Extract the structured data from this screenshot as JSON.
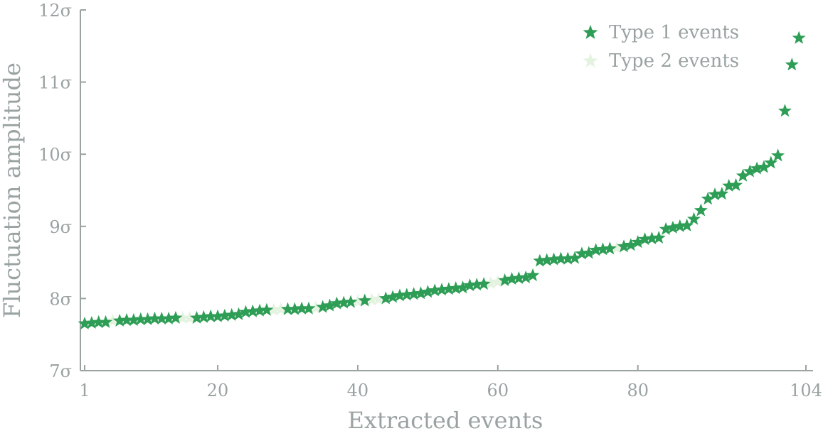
{
  "chart_data": {
    "type": "scatter",
    "xlabel": "Extracted events",
    "ylabel": "Fluctuation amplitude",
    "xlim": [
      0.5,
      105
    ],
    "ylim": [
      7,
      12
    ],
    "x_ticks": [
      1,
      20,
      40,
      60,
      80,
      104
    ],
    "x_tick_labels": [
      "1",
      "20",
      "40",
      "60",
      "80",
      "104"
    ],
    "y_ticks": [
      7,
      8,
      9,
      10,
      11,
      12
    ],
    "y_tick_labels": [
      "7σ",
      "8σ",
      "9σ",
      "10σ",
      "11σ",
      "12σ"
    ],
    "grid": false,
    "legend_position": "top-right",
    "colors": {
      "axis": "#9aa2a2",
      "type1": "#2e9d55",
      "type2": "#e3f3df"
    },
    "series": [
      {
        "name": "Type 1 events",
        "marker": "star",
        "color": "#2e9d55",
        "points": [
          [
            1,
            7.65
          ],
          [
            2,
            7.66
          ],
          [
            3,
            7.67
          ],
          [
            4,
            7.67
          ],
          [
            6,
            7.69
          ],
          [
            7,
            7.7
          ],
          [
            8,
            7.7
          ],
          [
            9,
            7.71
          ],
          [
            10,
            7.71
          ],
          [
            11,
            7.72
          ],
          [
            12,
            7.72
          ],
          [
            13,
            7.72
          ],
          [
            14,
            7.73
          ],
          [
            17,
            7.73
          ],
          [
            18,
            7.74
          ],
          [
            19,
            7.75
          ],
          [
            20,
            7.75
          ],
          [
            21,
            7.76
          ],
          [
            22,
            7.77
          ],
          [
            23,
            7.78
          ],
          [
            24,
            7.81
          ],
          [
            25,
            7.82
          ],
          [
            26,
            7.83
          ],
          [
            27,
            7.84
          ],
          [
            30,
            7.85
          ],
          [
            31,
            7.85
          ],
          [
            32,
            7.86
          ],
          [
            33,
            7.86
          ],
          [
            35,
            7.88
          ],
          [
            36,
            7.9
          ],
          [
            37,
            7.93
          ],
          [
            38,
            7.94
          ],
          [
            39,
            7.95
          ],
          [
            41,
            7.97
          ],
          [
            44,
            8.0
          ],
          [
            45,
            8.02
          ],
          [
            46,
            8.04
          ],
          [
            47,
            8.05
          ],
          [
            48,
            8.06
          ],
          [
            49,
            8.07
          ],
          [
            50,
            8.09
          ],
          [
            51,
            8.11
          ],
          [
            52,
            8.12
          ],
          [
            53,
            8.13
          ],
          [
            54,
            8.14
          ],
          [
            55,
            8.15
          ],
          [
            56,
            8.18
          ],
          [
            57,
            8.19
          ],
          [
            58,
            8.2
          ],
          [
            61,
            8.25
          ],
          [
            62,
            8.27
          ],
          [
            63,
            8.28
          ],
          [
            64,
            8.29
          ],
          [
            65,
            8.32
          ],
          [
            66,
            8.52
          ],
          [
            67,
            8.53
          ],
          [
            68,
            8.54
          ],
          [
            69,
            8.55
          ],
          [
            70,
            8.55
          ],
          [
            71,
            8.56
          ],
          [
            72,
            8.62
          ],
          [
            73,
            8.63
          ],
          [
            74,
            8.67
          ],
          [
            75,
            8.68
          ],
          [
            76,
            8.69
          ],
          [
            78,
            8.72
          ],
          [
            79,
            8.74
          ],
          [
            80,
            8.78
          ],
          [
            81,
            8.82
          ],
          [
            82,
            8.83
          ],
          [
            83,
            8.84
          ],
          [
            84,
            8.96
          ],
          [
            85,
            8.98
          ],
          [
            86,
            9.0
          ],
          [
            87,
            9.01
          ],
          [
            88,
            9.1
          ],
          [
            89,
            9.22
          ],
          [
            90,
            9.38
          ],
          [
            91,
            9.44
          ],
          [
            92,
            9.45
          ],
          [
            93,
            9.56
          ],
          [
            94,
            9.57
          ],
          [
            95,
            9.7
          ],
          [
            96,
            9.76
          ],
          [
            97,
            9.8
          ],
          [
            98,
            9.82
          ],
          [
            99,
            9.88
          ],
          [
            100,
            9.98
          ],
          [
            101,
            10.6
          ],
          [
            102,
            11.24
          ],
          [
            103,
            11.61
          ]
        ]
      },
      {
        "name": "Type 2 events",
        "marker": "star",
        "color": "#e3f3df",
        "points": [
          [
            5,
            7.69
          ],
          [
            15,
            7.73
          ],
          [
            16,
            7.73
          ],
          [
            28,
            7.84
          ],
          [
            29,
            7.85
          ],
          [
            34,
            7.87
          ],
          [
            40,
            7.96
          ],
          [
            42,
            7.98
          ],
          [
            43,
            7.99
          ],
          [
            59,
            8.21
          ],
          [
            60,
            8.23
          ],
          [
            77,
            8.7
          ]
        ]
      }
    ]
  }
}
